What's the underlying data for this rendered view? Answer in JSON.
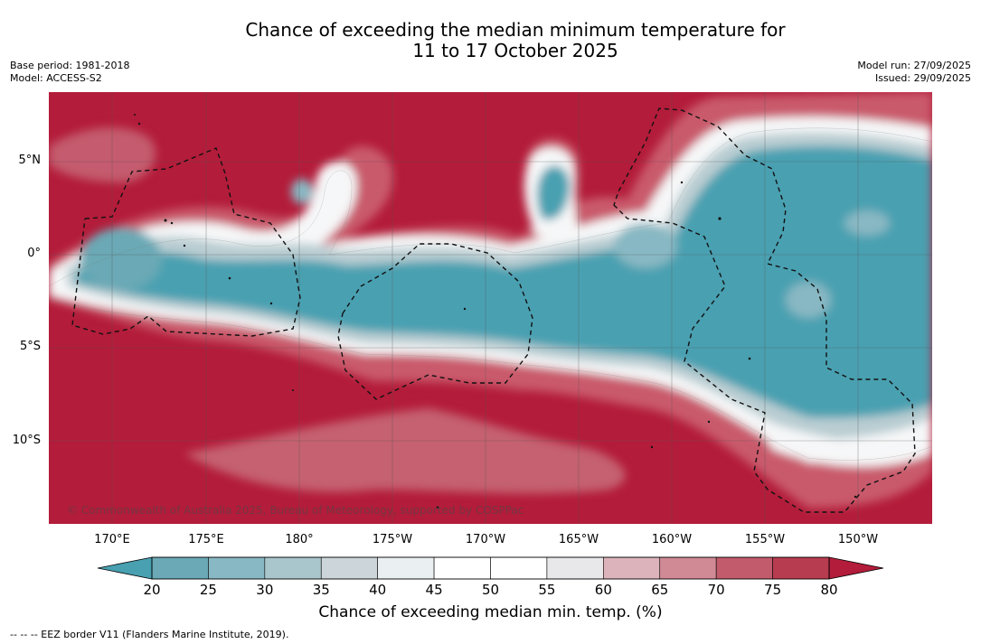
{
  "title": {
    "line1": "Chance of exceeding the median minimum temperature for",
    "line2": "11 to 17 October 2025"
  },
  "meta": {
    "base_period": "Base period: 1981-2018",
    "model": "Model: ACCESS-S2",
    "model_run": "Model run: 27/09/2025",
    "issued": "Issued: 29/09/2025"
  },
  "map": {
    "lat_labels": [
      "5°N",
      "0°",
      "5°S",
      "10°S"
    ],
    "lon_labels": [
      "170°E",
      "175°E",
      "180°",
      "175°W",
      "170°W",
      "165°W",
      "160°W",
      "155°W",
      "150°W"
    ],
    "copyright": "© Commonwealth of Australia 2025, Bureau of Meteorology, supported by COSPPac"
  },
  "colorbar": {
    "ticks": [
      "20",
      "25",
      "30",
      "35",
      "40",
      "45",
      "50",
      "55",
      "60",
      "65",
      "70",
      "75",
      "80"
    ],
    "colors": [
      "#6aa9b5",
      "#88b8c3",
      "#a8c6cc",
      "#ccd6da",
      "#eaeff1",
      "#ffffff",
      "#ffffff",
      "#e8e8ea",
      "#ddb3bb",
      "#d08a95",
      "#c25c6c",
      "#b83c50"
    ],
    "under_color": "#48a0b1",
    "over_color": "#b31c3a",
    "label": "Chance of exceeding median min. temp. (%)"
  },
  "legend": {
    "text": "-- -- -- EEZ border V11 (Flanders Marine Institute, 2019)."
  }
}
